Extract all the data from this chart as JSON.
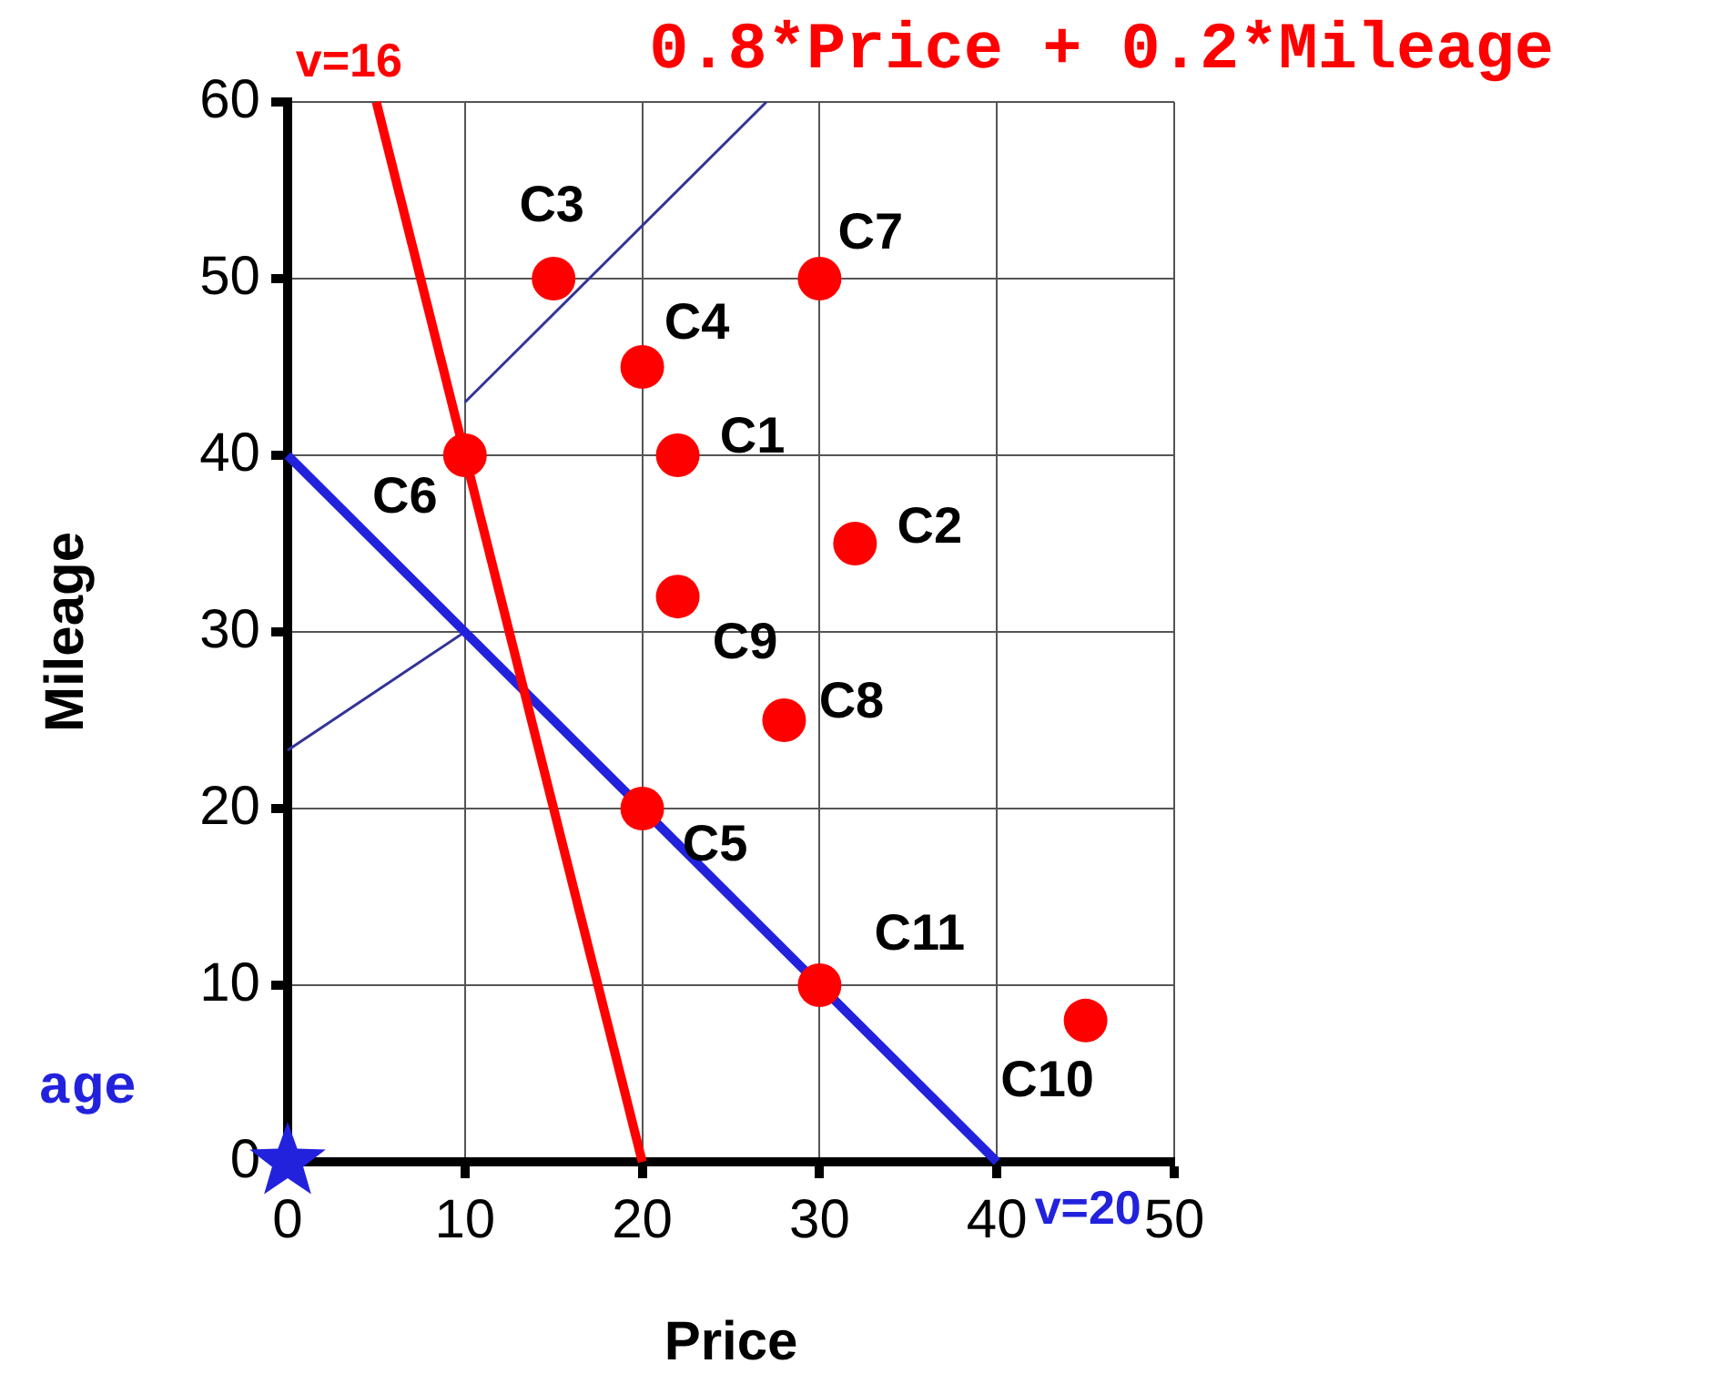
{
  "chart_data": {
    "type": "scatter",
    "title": "0.8*Price + 0.2*Mileage",
    "xlabel": "Price",
    "ylabel": "Mileage",
    "xlim": [
      0,
      50
    ],
    "ylim": [
      0,
      60
    ],
    "xticks": [
      0,
      10,
      20,
      30,
      40,
      50
    ],
    "yticks": [
      0,
      10,
      20,
      30,
      40,
      50,
      60
    ],
    "grid": true,
    "legend": false,
    "series": [
      {
        "type": "scatter",
        "marker": "circle",
        "color": "#ff0000",
        "x": [
          22,
          32,
          15,
          20,
          20,
          10,
          30,
          28,
          22,
          45,
          30
        ],
        "values": [
          40,
          35,
          50,
          45,
          20,
          40,
          50,
          25,
          32,
          8,
          10
        ]
      },
      {
        "type": "scatter",
        "marker": "star",
        "color": "#2222dd",
        "x": [
          0
        ],
        "values": [
          0
        ]
      },
      {
        "type": "line",
        "name": "v=16",
        "color": "#ff0000",
        "x": [
          5,
          20
        ],
        "values": [
          60,
          0
        ]
      },
      {
        "type": "line",
        "name": "v=20",
        "color": "#2222dd",
        "x": [
          0,
          40
        ],
        "values": [
          40,
          0
        ]
      },
      {
        "type": "line",
        "color": "#333399",
        "x": [
          10,
          27
        ],
        "values": [
          43,
          60
        ]
      },
      {
        "type": "line",
        "color": "#333399",
        "x": [
          0,
          10
        ],
        "values": [
          23.3,
          30
        ]
      }
    ],
    "annotations": [
      {
        "text": "C1",
        "x": 22,
        "y": 40
      },
      {
        "text": "C2",
        "x": 32,
        "y": 35
      },
      {
        "text": "C3",
        "x": 15,
        "y": 50
      },
      {
        "text": "C4",
        "x": 20,
        "y": 45
      },
      {
        "text": "C5",
        "x": 20,
        "y": 20
      },
      {
        "text": "C6",
        "x": 10,
        "y": 40
      },
      {
        "text": "C7",
        "x": 30,
        "y": 50
      },
      {
        "text": "C8",
        "x": 28,
        "y": 25
      },
      {
        "text": "C9",
        "x": 22,
        "y": 32
      },
      {
        "text": "C10",
        "x": 45,
        "y": 8
      },
      {
        "text": "C11",
        "x": 30,
        "y": 10
      },
      "age"
    ]
  }
}
